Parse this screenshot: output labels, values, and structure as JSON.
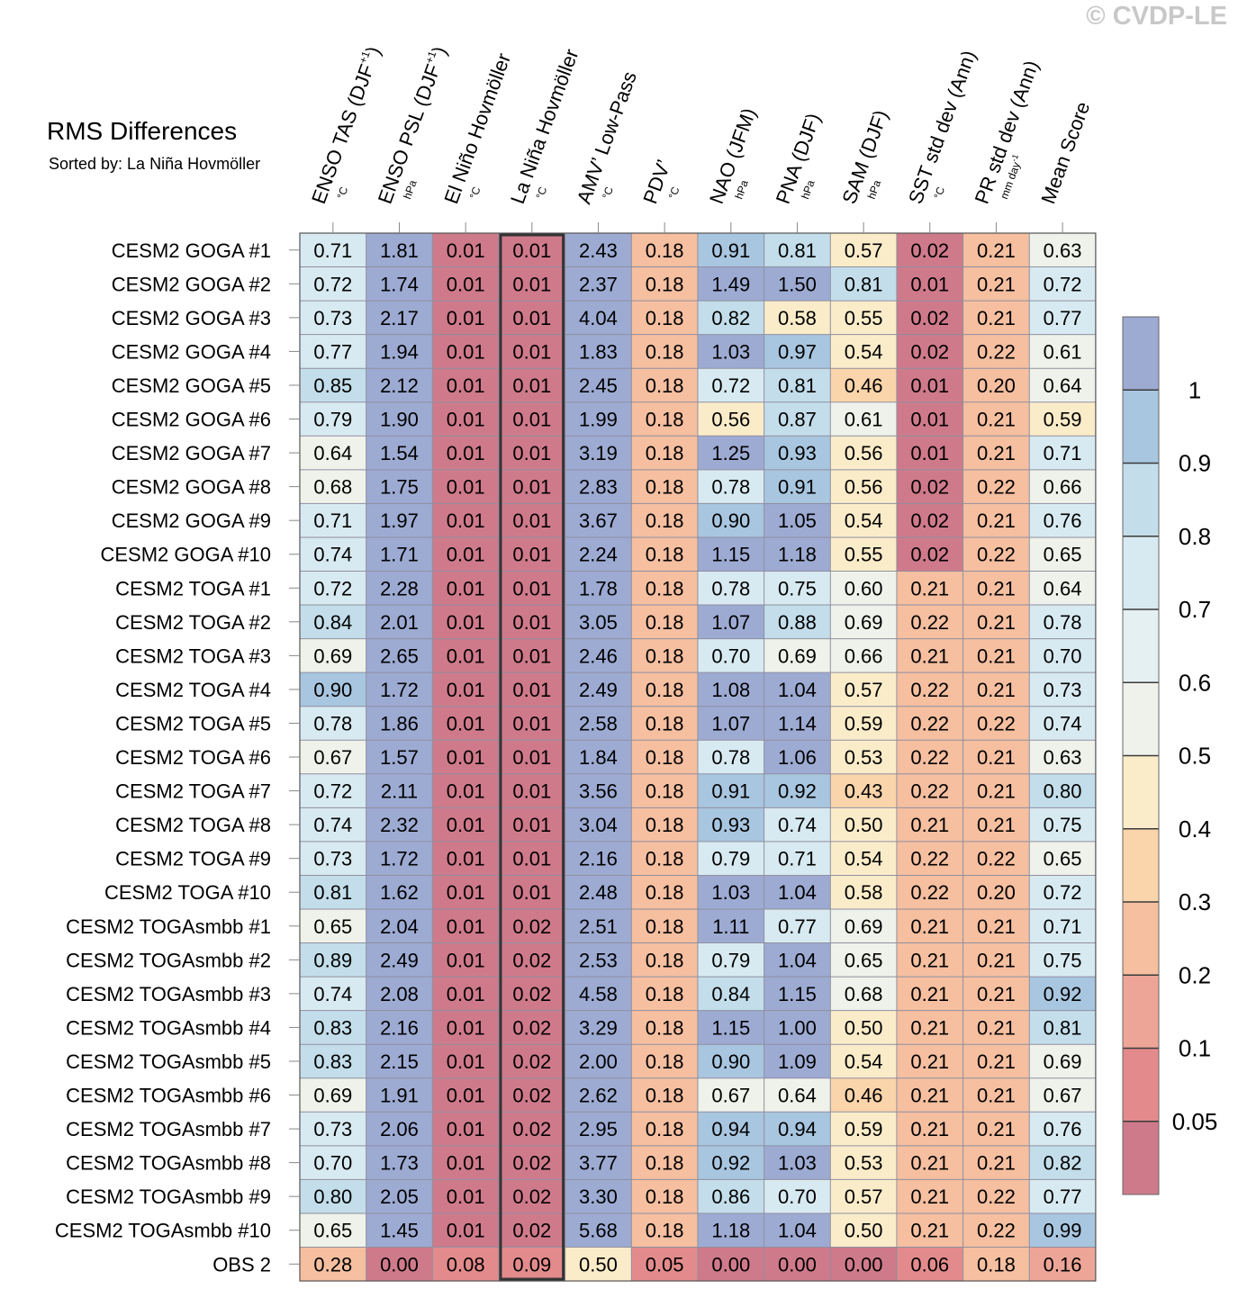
{
  "watermark": "© CVDP-LE",
  "title": "RMS Differences",
  "subtitle": "Sorted by: La Niña Hovmöller",
  "chart_data": {
    "type": "heatmap",
    "highlighted_column": "La Niña Hovmöller",
    "columns": [
      {
        "label": "ENSO TAS (DJF",
        "sup": "+1",
        "close": ")",
        "unit": "°C"
      },
      {
        "label": "ENSO PSL (DJF",
        "sup": "+1",
        "close": ")",
        "unit": "hPa"
      },
      {
        "label": "El Niño Hovmöller",
        "sup": "",
        "close": "",
        "unit": "°C"
      },
      {
        "label": "La Niña Hovmöller",
        "sup": "",
        "close": "",
        "unit": "°C"
      },
      {
        "label": "AMV’ Low-Pass",
        "sup": "",
        "close": "",
        "unit": "°C"
      },
      {
        "label": "PDV’",
        "sup": "",
        "close": "",
        "unit": "°C"
      },
      {
        "label": "NAO (JFM)",
        "sup": "",
        "close": "",
        "unit": "hPa"
      },
      {
        "label": "PNA (DJF)",
        "sup": "",
        "close": "",
        "unit": "hPa"
      },
      {
        "label": "SAM (DJF)",
        "sup": "",
        "close": "",
        "unit": "hPa"
      },
      {
        "label": "SST std dev (Ann)",
        "sup": "",
        "close": "",
        "unit": "°C"
      },
      {
        "label": "PR std dev (Ann)",
        "sup": "",
        "close": "",
        "unit": "mm day",
        "unit_sup": "-1"
      },
      {
        "label": "Mean Score",
        "sup": "",
        "close": "",
        "unit": ""
      }
    ],
    "rows": [
      {
        "name": "CESM2 GOGA #1",
        "values": [
          "0.71",
          "1.81",
          "0.01",
          "0.01",
          "2.43",
          "0.18",
          "0.91",
          "0.81",
          "0.57",
          "0.02",
          "0.21",
          "0.63"
        ],
        "colors": [
          7,
          10,
          0,
          0,
          10,
          3,
          9,
          8,
          5,
          0,
          3,
          6
        ]
      },
      {
        "name": "CESM2 GOGA #2",
        "values": [
          "0.72",
          "1.74",
          "0.01",
          "0.01",
          "2.37",
          "0.18",
          "1.49",
          "1.50",
          "0.81",
          "0.01",
          "0.21",
          "0.72"
        ],
        "colors": [
          7,
          10,
          0,
          0,
          10,
          3,
          10,
          10,
          8,
          0,
          3,
          7
        ]
      },
      {
        "name": "CESM2 GOGA #3",
        "values": [
          "0.73",
          "2.17",
          "0.01",
          "0.01",
          "4.04",
          "0.18",
          "0.82",
          "0.58",
          "0.55",
          "0.02",
          "0.21",
          "0.77"
        ],
        "colors": [
          7,
          10,
          0,
          0,
          10,
          3,
          8,
          5,
          5,
          0,
          3,
          7
        ]
      },
      {
        "name": "CESM2 GOGA #4",
        "values": [
          "0.77",
          "1.94",
          "0.01",
          "0.01",
          "1.83",
          "0.18",
          "1.03",
          "0.97",
          "0.54",
          "0.02",
          "0.22",
          "0.61"
        ],
        "colors": [
          7,
          10,
          0,
          0,
          10,
          3,
          10,
          9,
          5,
          0,
          3,
          6
        ]
      },
      {
        "name": "CESM2 GOGA #5",
        "values": [
          "0.85",
          "2.12",
          "0.01",
          "0.01",
          "2.45",
          "0.18",
          "0.72",
          "0.81",
          "0.46",
          "0.01",
          "0.20",
          "0.64"
        ],
        "colors": [
          8,
          10,
          0,
          0,
          10,
          3,
          7,
          8,
          4,
          0,
          3,
          6
        ]
      },
      {
        "name": "CESM2 GOGA #6",
        "values": [
          "0.79",
          "1.90",
          "0.01",
          "0.01",
          "1.99",
          "0.18",
          "0.56",
          "0.87",
          "0.61",
          "0.01",
          "0.21",
          "0.59"
        ],
        "colors": [
          7,
          10,
          0,
          0,
          10,
          3,
          5,
          8,
          6,
          0,
          3,
          5
        ]
      },
      {
        "name": "CESM2 GOGA #7",
        "values": [
          "0.64",
          "1.54",
          "0.01",
          "0.01",
          "3.19",
          "0.18",
          "1.25",
          "0.93",
          "0.56",
          "0.01",
          "0.21",
          "0.71"
        ],
        "colors": [
          6,
          10,
          0,
          0,
          10,
          3,
          10,
          9,
          5,
          0,
          3,
          7
        ]
      },
      {
        "name": "CESM2 GOGA #8",
        "values": [
          "0.68",
          "1.75",
          "0.01",
          "0.01",
          "2.83",
          "0.18",
          "0.78",
          "0.91",
          "0.56",
          "0.02",
          "0.22",
          "0.66"
        ],
        "colors": [
          6,
          10,
          0,
          0,
          10,
          3,
          7,
          9,
          5,
          0,
          3,
          6
        ]
      },
      {
        "name": "CESM2 GOGA #9",
        "values": [
          "0.71",
          "1.97",
          "0.01",
          "0.01",
          "3.67",
          "0.18",
          "0.90",
          "1.05",
          "0.54",
          "0.02",
          "0.21",
          "0.76"
        ],
        "colors": [
          7,
          10,
          0,
          0,
          10,
          3,
          9,
          10,
          5,
          0,
          3,
          7
        ]
      },
      {
        "name": "CESM2 GOGA #10",
        "values": [
          "0.74",
          "1.71",
          "0.01",
          "0.01",
          "2.24",
          "0.18",
          "1.15",
          "1.18",
          "0.55",
          "0.02",
          "0.22",
          "0.65"
        ],
        "colors": [
          7,
          10,
          0,
          0,
          10,
          3,
          10,
          10,
          5,
          0,
          3,
          6
        ]
      },
      {
        "name": "CESM2 TOGA #1",
        "values": [
          "0.72",
          "2.28",
          "0.01",
          "0.01",
          "1.78",
          "0.18",
          "0.78",
          "0.75",
          "0.60",
          "0.21",
          "0.21",
          "0.64"
        ],
        "colors": [
          7,
          10,
          0,
          0,
          10,
          3,
          7,
          7,
          6,
          3,
          3,
          6
        ]
      },
      {
        "name": "CESM2 TOGA #2",
        "values": [
          "0.84",
          "2.01",
          "0.01",
          "0.01",
          "3.05",
          "0.18",
          "1.07",
          "0.88",
          "0.69",
          "0.22",
          "0.21",
          "0.78"
        ],
        "colors": [
          8,
          10,
          0,
          0,
          10,
          3,
          10,
          8,
          6,
          3,
          3,
          7
        ]
      },
      {
        "name": "CESM2 TOGA #3",
        "values": [
          "0.69",
          "2.65",
          "0.01",
          "0.01",
          "2.46",
          "0.18",
          "0.70",
          "0.69",
          "0.66",
          "0.21",
          "0.21",
          "0.70"
        ],
        "colors": [
          6,
          10,
          0,
          0,
          10,
          3,
          7,
          6,
          6,
          3,
          3,
          7
        ]
      },
      {
        "name": "CESM2 TOGA #4",
        "values": [
          "0.90",
          "1.72",
          "0.01",
          "0.01",
          "2.49",
          "0.18",
          "1.08",
          "1.04",
          "0.57",
          "0.22",
          "0.21",
          "0.73"
        ],
        "colors": [
          9,
          10,
          0,
          0,
          10,
          3,
          10,
          10,
          5,
          3,
          3,
          7
        ]
      },
      {
        "name": "CESM2 TOGA #5",
        "values": [
          "0.78",
          "1.86",
          "0.01",
          "0.01",
          "2.58",
          "0.18",
          "1.07",
          "1.14",
          "0.59",
          "0.22",
          "0.22",
          "0.74"
        ],
        "colors": [
          7,
          10,
          0,
          0,
          10,
          3,
          10,
          10,
          5,
          3,
          3,
          7
        ]
      },
      {
        "name": "CESM2 TOGA #6",
        "values": [
          "0.67",
          "1.57",
          "0.01",
          "0.01",
          "1.84",
          "0.18",
          "0.78",
          "1.06",
          "0.53",
          "0.22",
          "0.21",
          "0.63"
        ],
        "colors": [
          6,
          10,
          0,
          0,
          10,
          3,
          7,
          10,
          5,
          3,
          3,
          6
        ]
      },
      {
        "name": "CESM2 TOGA #7",
        "values": [
          "0.72",
          "2.11",
          "0.01",
          "0.01",
          "3.56",
          "0.18",
          "0.91",
          "0.92",
          "0.43",
          "0.22",
          "0.21",
          "0.80"
        ],
        "colors": [
          7,
          10,
          0,
          0,
          10,
          3,
          9,
          9,
          4,
          3,
          3,
          8
        ]
      },
      {
        "name": "CESM2 TOGA #8",
        "values": [
          "0.74",
          "2.32",
          "0.01",
          "0.01",
          "3.04",
          "0.18",
          "0.93",
          "0.74",
          "0.50",
          "0.21",
          "0.21",
          "0.75"
        ],
        "colors": [
          7,
          10,
          0,
          0,
          10,
          3,
          9,
          7,
          5,
          3,
          3,
          7
        ]
      },
      {
        "name": "CESM2 TOGA #9",
        "values": [
          "0.73",
          "1.72",
          "0.01",
          "0.01",
          "2.16",
          "0.18",
          "0.79",
          "0.71",
          "0.54",
          "0.22",
          "0.22",
          "0.65"
        ],
        "colors": [
          7,
          10,
          0,
          0,
          10,
          3,
          7,
          7,
          5,
          3,
          3,
          6
        ]
      },
      {
        "name": "CESM2 TOGA #10",
        "values": [
          "0.81",
          "1.62",
          "0.01",
          "0.01",
          "2.48",
          "0.18",
          "1.03",
          "1.04",
          "0.58",
          "0.22",
          "0.20",
          "0.72"
        ],
        "colors": [
          8,
          10,
          0,
          0,
          10,
          3,
          10,
          10,
          5,
          3,
          3,
          7
        ]
      },
      {
        "name": "CESM2 TOGAsmbb #1",
        "values": [
          "0.65",
          "2.04",
          "0.01",
          "0.02",
          "2.51",
          "0.18",
          "1.11",
          "0.77",
          "0.69",
          "0.21",
          "0.21",
          "0.71"
        ],
        "colors": [
          6,
          10,
          0,
          0,
          10,
          3,
          10,
          7,
          6,
          3,
          3,
          7
        ]
      },
      {
        "name": "CESM2 TOGAsmbb #2",
        "values": [
          "0.89",
          "2.49",
          "0.01",
          "0.02",
          "2.53",
          "0.18",
          "0.79",
          "1.04",
          "0.65",
          "0.21",
          "0.21",
          "0.75"
        ],
        "colors": [
          8,
          10,
          0,
          0,
          10,
          3,
          7,
          10,
          6,
          3,
          3,
          7
        ]
      },
      {
        "name": "CESM2 TOGAsmbb #3",
        "values": [
          "0.74",
          "2.08",
          "0.01",
          "0.02",
          "4.58",
          "0.18",
          "0.84",
          "1.15",
          "0.68",
          "0.21",
          "0.21",
          "0.92"
        ],
        "colors": [
          7,
          10,
          0,
          0,
          10,
          3,
          8,
          10,
          6,
          3,
          3,
          9
        ]
      },
      {
        "name": "CESM2 TOGAsmbb #4",
        "values": [
          "0.83",
          "2.16",
          "0.01",
          "0.02",
          "3.29",
          "0.18",
          "1.15",
          "1.00",
          "0.50",
          "0.21",
          "0.21",
          "0.81"
        ],
        "colors": [
          8,
          10,
          0,
          0,
          10,
          3,
          10,
          10,
          5,
          3,
          3,
          8
        ]
      },
      {
        "name": "CESM2 TOGAsmbb #5",
        "values": [
          "0.83",
          "2.15",
          "0.01",
          "0.02",
          "2.00",
          "0.18",
          "0.90",
          "1.09",
          "0.54",
          "0.21",
          "0.21",
          "0.69"
        ],
        "colors": [
          8,
          10,
          0,
          0,
          10,
          3,
          9,
          10,
          5,
          3,
          3,
          6
        ]
      },
      {
        "name": "CESM2 TOGAsmbb #6",
        "values": [
          "0.69",
          "1.91",
          "0.01",
          "0.02",
          "2.62",
          "0.18",
          "0.67",
          "0.64",
          "0.46",
          "0.21",
          "0.21",
          "0.67"
        ],
        "colors": [
          6,
          10,
          0,
          0,
          10,
          3,
          6,
          6,
          4,
          3,
          3,
          6
        ]
      },
      {
        "name": "CESM2 TOGAsmbb #7",
        "values": [
          "0.73",
          "2.06",
          "0.01",
          "0.02",
          "2.95",
          "0.18",
          "0.94",
          "0.94",
          "0.59",
          "0.21",
          "0.21",
          "0.76"
        ],
        "colors": [
          7,
          10,
          0,
          0,
          10,
          3,
          9,
          9,
          5,
          3,
          3,
          7
        ]
      },
      {
        "name": "CESM2 TOGAsmbb #8",
        "values": [
          "0.70",
          "1.73",
          "0.01",
          "0.02",
          "3.77",
          "0.18",
          "0.92",
          "1.03",
          "0.53",
          "0.21",
          "0.21",
          "0.82"
        ],
        "colors": [
          7,
          10,
          0,
          0,
          10,
          3,
          9,
          10,
          5,
          3,
          3,
          8
        ]
      },
      {
        "name": "CESM2 TOGAsmbb #9",
        "values": [
          "0.80",
          "2.05",
          "0.01",
          "0.02",
          "3.30",
          "0.18",
          "0.86",
          "0.70",
          "0.57",
          "0.21",
          "0.22",
          "0.77"
        ],
        "colors": [
          8,
          10,
          0,
          0,
          10,
          3,
          8,
          7,
          5,
          3,
          3,
          7
        ]
      },
      {
        "name": "CESM2 TOGAsmbb #10",
        "values": [
          "0.65",
          "1.45",
          "0.01",
          "0.02",
          "5.68",
          "0.18",
          "1.18",
          "1.04",
          "0.50",
          "0.21",
          "0.22",
          "0.99"
        ],
        "colors": [
          6,
          10,
          0,
          0,
          10,
          3,
          10,
          10,
          5,
          3,
          3,
          9
        ]
      },
      {
        "name": "OBS 2",
        "values": [
          "0.28",
          "0.00",
          "0.08",
          "0.09",
          "0.50",
          "0.05",
          "0.00",
          "0.00",
          "0.00",
          "0.06",
          "0.18",
          "0.16"
        ],
        "colors": [
          3,
          0,
          1,
          1,
          5,
          1,
          0,
          0,
          0,
          1,
          3,
          2
        ]
      }
    ],
    "palette": [
      "#cf7a8b",
      "#e38b8c",
      "#eda597",
      "#f5bfa0",
      "#fad4aa",
      "#fbecc9",
      "#eff2ea",
      "#d8eaf1",
      "#c3deea",
      "#a9c6e0",
      "#9dabd3"
    ],
    "colorbar": {
      "labels": [
        "1",
        "0.9",
        "0.8",
        "0.7",
        "0.6",
        "0.5",
        "0.4",
        "0.3",
        "0.2",
        "0.1",
        "0.05"
      ],
      "segments": [
        "#9dabd3",
        "#a9c6e0",
        "#c3deea",
        "#d8eaf1",
        "#e5f0f3",
        "#eff2ea",
        "#fbecc9",
        "#fad4aa",
        "#f5bfa0",
        "#eda597",
        "#e38b8c",
        "#cf7a8b"
      ]
    }
  }
}
